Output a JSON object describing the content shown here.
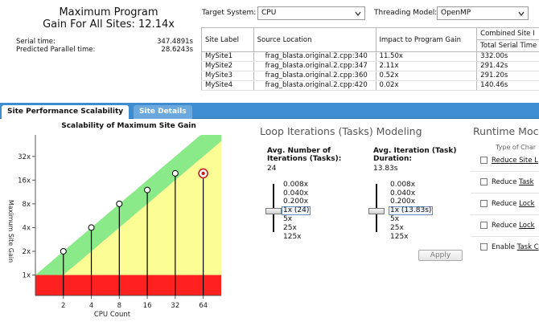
{
  "summary": {
    "title_line1": "Maximum Program",
    "title_line2": "Gain For All Sites: 12.14x",
    "serial_label": "Serial time:",
    "serial_value": "347.4891s",
    "parallel_label": "Predicted Parallel time:",
    "parallel_value": "28.6243s"
  },
  "controls": {
    "target_label": "Target System:",
    "target_value": "CPU",
    "threading_label": "Threading Model:",
    "threading_value": "OpenMP"
  },
  "sites_table": {
    "headers": {
      "site_label": "Site Label",
      "source_location": "Source Location",
      "impact": "Impact to Program Gain",
      "combined_group": "Combined Site I",
      "total_serial": "Total Serial Time"
    },
    "rows": [
      {
        "label": "MySite1",
        "source": "frag_blasta.original.2.cpp:340",
        "impact": "11.50x",
        "serial": "332.00s"
      },
      {
        "label": "MySite2",
        "source": "frag_blasta.original.2.cpp:347",
        "impact": "2.11x",
        "serial": "291.42s"
      },
      {
        "label": "MySite3",
        "source": "frag_blasta.original.2.cpp:360",
        "impact": "0.52x",
        "serial": "291.20s"
      },
      {
        "label": "MySite4",
        "source": "frag_blasta.original.2.cpp:420",
        "impact": "0.02x",
        "serial": "140.46s"
      }
    ]
  },
  "tabs": {
    "performance": "Site Performance Scalability",
    "details": "Site Details"
  },
  "chart_data": {
    "type": "scatter",
    "title": "Scalability of Maximum Site Gain",
    "xlabel": "CPU Count",
    "ylabel": "Maximum Site Gain",
    "x_ticks": [
      "2",
      "4",
      "8",
      "16",
      "32",
      "64"
    ],
    "y_ticks": [
      "1x",
      "2x",
      "4x",
      "8x",
      "16x",
      "32x"
    ],
    "x_scale": "log2",
    "y_scale": "log2",
    "xlim": [
      1,
      100
    ],
    "ylim": [
      0.55,
      60
    ],
    "points": [
      {
        "cpus": 2,
        "gain": 2.0
      },
      {
        "cpus": 4,
        "gain": 4.0
      },
      {
        "cpus": 8,
        "gain": 8.0
      },
      {
        "cpus": 16,
        "gain": 12.0
      },
      {
        "cpus": 32,
        "gain": 19.5
      },
      {
        "cpus": 64,
        "gain": 19.5,
        "selected": true
      }
    ],
    "regions": [
      {
        "name": "poor",
        "color": "#ff2020",
        "from_gain": 0.55,
        "to_gain": 1.0
      },
      {
        "name": "moderate",
        "color": "#fdfd96",
        "note": "between 1x and 0.5 * CPU count"
      },
      {
        "name": "good",
        "color": "#8aea8a",
        "note": "between 0.5 * CPU count and CPU count"
      }
    ]
  },
  "modeling": {
    "title": "Loop Iterations (Tasks) Modeling",
    "iterations": {
      "title": "Avg. Number of Iterations (Tasks):",
      "value": "24",
      "options": [
        "0.008x",
        "0.040x",
        "0.200x",
        "1x (24)",
        "5x",
        "25x",
        "125x"
      ],
      "selected_index": 3
    },
    "duration": {
      "title": "Avg. Iteration (Task) Duration:",
      "value": "13.83s",
      "options": [
        "0.008x",
        "0.040x",
        "0.200x",
        "1x (13.83s)",
        "5x",
        "25x",
        "125x"
      ],
      "selected_index": 3
    },
    "apply_label": "Apply"
  },
  "runtime": {
    "title": "Runtime Moc",
    "subtitle": "Type of Char",
    "items": [
      {
        "prefix": "",
        "link": "Reduce Site L"
      },
      {
        "prefix": "Reduce ",
        "link": "Task"
      },
      {
        "prefix": "Reduce ",
        "link": "Lock"
      },
      {
        "prefix": "Reduce ",
        "link": "Lock"
      },
      {
        "prefix": "Enable ",
        "link": "Task C"
      }
    ]
  }
}
